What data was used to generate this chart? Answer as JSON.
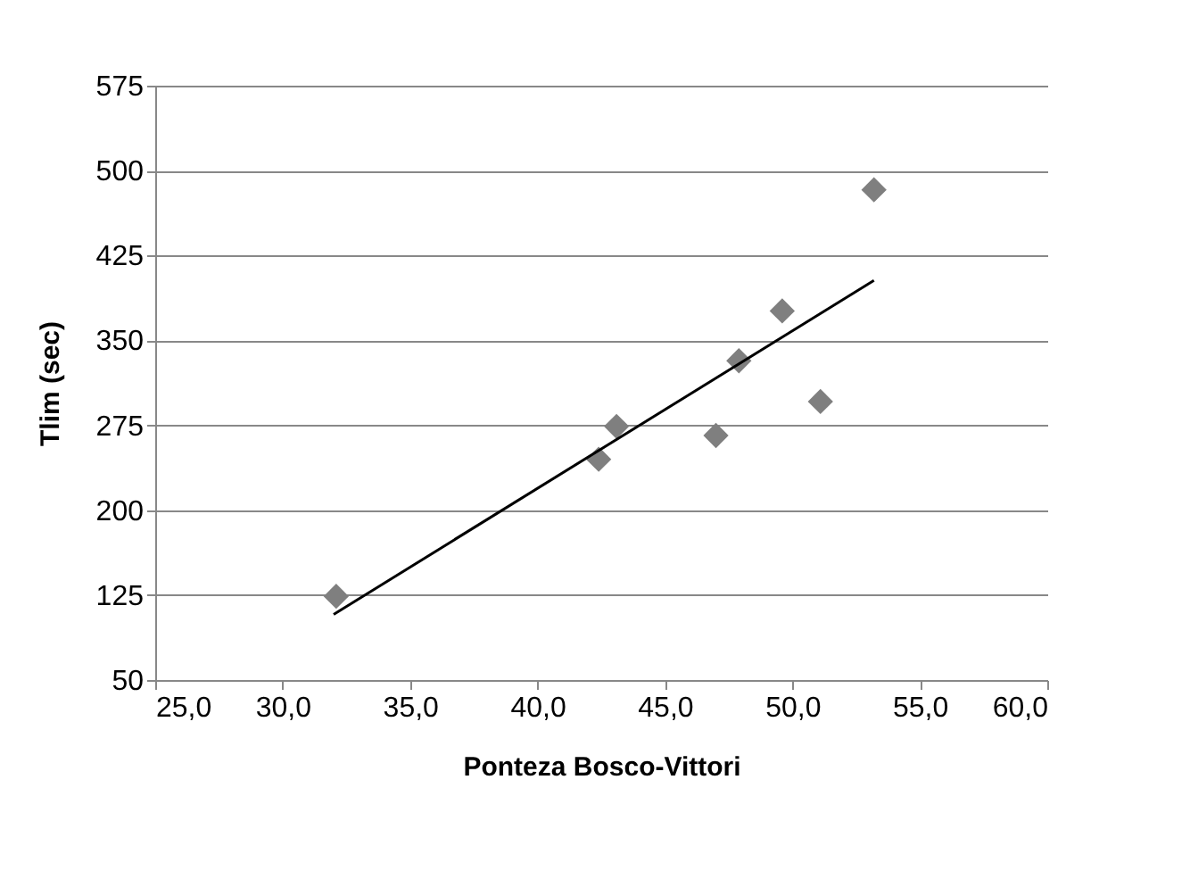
{
  "chart_data": {
    "type": "scatter",
    "xlabel": "Ponteza Bosco-Vittori",
    "ylabel": "Tlim (sec)",
    "xlim": [
      25,
      60
    ],
    "xticks": [
      {
        "value": 25,
        "label": "25,0"
      },
      {
        "value": 30,
        "label": "30,0"
      },
      {
        "value": 35,
        "label": "35,0"
      },
      {
        "value": 40,
        "label": "40,0"
      },
      {
        "value": 45,
        "label": "45,0"
      },
      {
        "value": 50,
        "label": "50,0"
      },
      {
        "value": 55,
        "label": "55,0"
      },
      {
        "value": 60,
        "label": "60,0"
      }
    ],
    "ylim": [
      50,
      575
    ],
    "yticks": [
      50,
      125,
      200,
      275,
      350,
      425,
      500,
      575
    ],
    "grid": "y",
    "marker": "diamond",
    "series": [
      {
        "type": "scatter",
        "color": "#7f7f7f",
        "x": [
          32.1,
          42.4,
          43.1,
          47.0,
          47.9,
          49.6,
          51.1,
          53.2
        ],
        "values": [
          124,
          245,
          274,
          266,
          332,
          376,
          296,
          483
        ]
      },
      {
        "type": "line",
        "color": "#000000",
        "x": [
          32.0,
          53.2
        ],
        "values": [
          108,
          403
        ],
        "marker": "none",
        "line_style": "solid"
      }
    ]
  }
}
